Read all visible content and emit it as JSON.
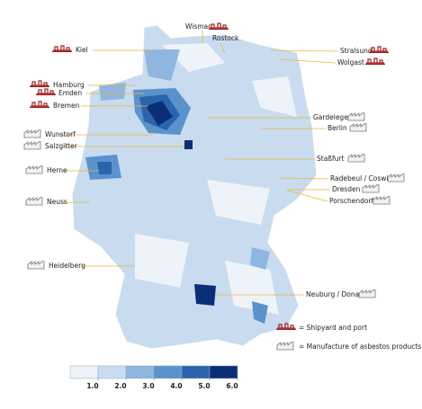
{
  "labels": {
    "kiel": "Kiel",
    "hamburg": "Hamburg",
    "emden": "Emden",
    "bremen": "Bremen",
    "wunstorf": "Wunstorf",
    "salzgitter": "Salzgitter",
    "herne": "Herne",
    "neuss": "Neuss",
    "heidelberg": "Heidelberg",
    "wismar": "Wismar",
    "rostock": "Rostock",
    "stralsund": "Stralsund",
    "wolgast": "Wolgast",
    "gardelegen": "Gardelegen",
    "berlin": "Berlin",
    "stassfurt": "Staßfurt",
    "radebeul": "Radebeul / Coswig",
    "dresden": "Dresden",
    "porschendorf": "Porschendorf",
    "neuburg": "Neuburg / Donau"
  },
  "legend": {
    "shipyard": "= Shipyard and port",
    "asbestos": "= Manufacture of asbestos products"
  },
  "color_scale": {
    "colors": [
      "#eef3fa",
      "#c9dbef",
      "#8fb6de",
      "#5a93cc",
      "#2b64ad",
      "#0a2f78"
    ],
    "ticks": [
      {
        "value": 1,
        "label": "1.0"
      },
      {
        "value": 2,
        "label": "2.0"
      },
      {
        "value": 3,
        "label": "3.0"
      },
      {
        "value": 4,
        "label": "4.0"
      },
      {
        "value": 5,
        "label": "5.0"
      },
      {
        "value": 6,
        "label": "6.0"
      }
    ]
  }
}
